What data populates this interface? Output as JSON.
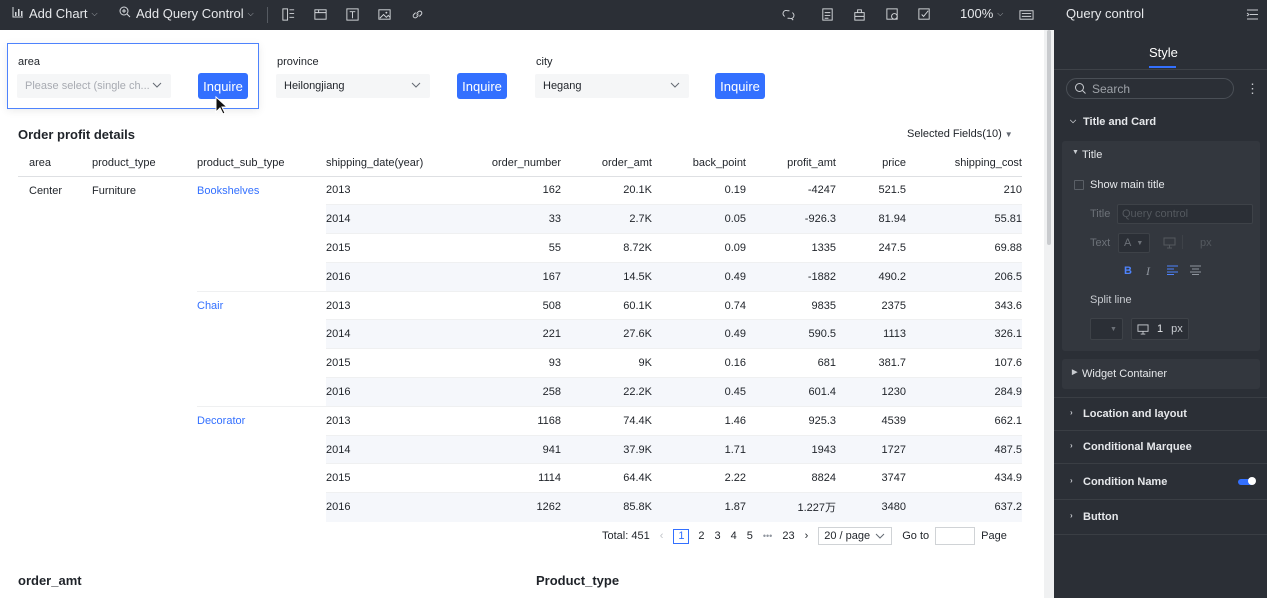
{
  "toolbar": {
    "add_chart": "Add Chart",
    "add_query_control": "Add Query Control",
    "zoom": "100%"
  },
  "query_controls": [
    {
      "label": "area",
      "placeholder": "Please select (single ch...",
      "value": "",
      "button": "Inquire"
    },
    {
      "label": "province",
      "placeholder": "",
      "value": "Heilongjiang",
      "button": "Inquire"
    },
    {
      "label": "city",
      "placeholder": "",
      "value": "Hegang",
      "button": "Inquire"
    }
  ],
  "table": {
    "title": "Order profit details",
    "selected_fields": "Selected Fields(10)",
    "columns": [
      "area",
      "product_type",
      "product_sub_type",
      "shipping_date(year)",
      "order_number",
      "order_amt",
      "back_point",
      "profit_amt",
      "price",
      "shipping_cost"
    ],
    "area": "Center",
    "product_type": "Furniture",
    "groups": [
      {
        "sub_type": "Bookshelves",
        "rows": [
          [
            "2013",
            "162",
            "20.1K",
            "0.19",
            "-4247",
            "521.5",
            "210"
          ],
          [
            "2014",
            "33",
            "2.7K",
            "0.05",
            "-926.3",
            "81.94",
            "55.81"
          ],
          [
            "2015",
            "55",
            "8.72K",
            "0.09",
            "1335",
            "247.5",
            "69.88"
          ],
          [
            "2016",
            "167",
            "14.5K",
            "0.49",
            "-1882",
            "490.2",
            "206.5"
          ]
        ]
      },
      {
        "sub_type": "Chair",
        "rows": [
          [
            "2013",
            "508",
            "60.1K",
            "0.74",
            "9835",
            "2375",
            "343.6"
          ],
          [
            "2014",
            "221",
            "27.6K",
            "0.49",
            "590.5",
            "1113",
            "326.1"
          ],
          [
            "2015",
            "93",
            "9K",
            "0.16",
            "681",
            "381.7",
            "107.6"
          ],
          [
            "2016",
            "258",
            "22.2K",
            "0.45",
            "601.4",
            "1230",
            "284.9"
          ]
        ]
      },
      {
        "sub_type": "Decorator",
        "rows": [
          [
            "2013",
            "1168",
            "74.4K",
            "1.46",
            "925.3",
            "4539",
            "662.1"
          ],
          [
            "2014",
            "941",
            "37.9K",
            "1.71",
            "1943",
            "1727",
            "487.5"
          ],
          [
            "2015",
            "1114",
            "64.4K",
            "2.22",
            "8824",
            "3747",
            "434.9"
          ],
          [
            "2016",
            "1262",
            "85.8K",
            "1.87",
            "1.227万",
            "3480",
            "637.2"
          ]
        ]
      }
    ]
  },
  "pagination": {
    "total": "Total: 451",
    "pages": [
      "1",
      "2",
      "3",
      "4",
      "5"
    ],
    "ellipsis": "•••",
    "last": "23",
    "page_size": "20 / page",
    "goto_label": "Go to",
    "page_label": "Page"
  },
  "lower_charts": {
    "left_title": "order_amt",
    "right_title": "Product_type"
  },
  "panel": {
    "title": "Query control",
    "tab": "Style",
    "search_placeholder": "Search",
    "title_and_card": "Title and Card",
    "title_sub": "Title",
    "show_main_title": "Show main title",
    "title_label": "Title",
    "title_placeholder": "Query control",
    "text_label": "Text",
    "font_glyph": "A",
    "px": "px",
    "split_line": "Split line",
    "split_value": "1",
    "widget_container": "Widget Container",
    "location_layout": "Location and layout",
    "conditional_marquee": "Conditional Marquee",
    "condition_name": "Condition Name",
    "button": "Button"
  },
  "colors": {
    "accent": "#3370ff",
    "panel_bg": "#2b2f36",
    "row_alt": "#f5f7fb"
  }
}
